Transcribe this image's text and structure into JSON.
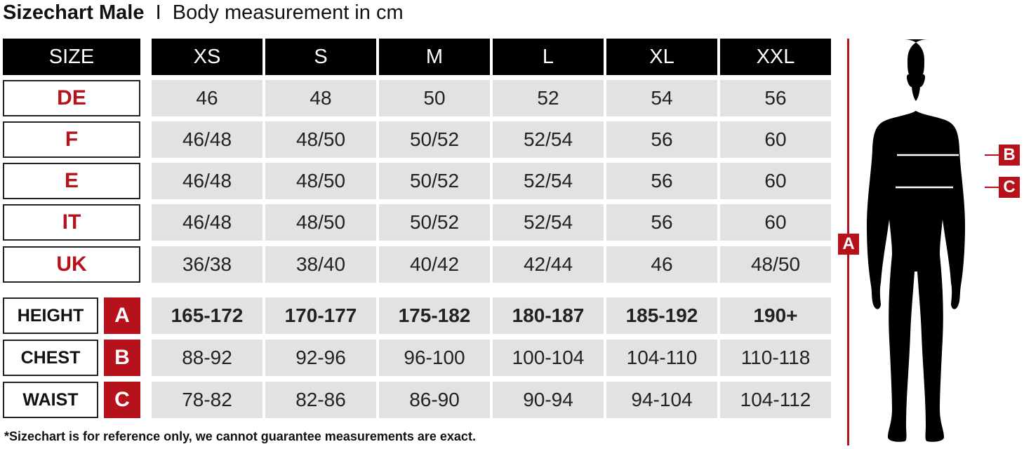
{
  "title": {
    "bold": "Sizechart Male",
    "separator": "I",
    "subtitle": "Body measurement in cm"
  },
  "header": {
    "label": "SIZE",
    "sizes": [
      "XS",
      "S",
      "M",
      "L",
      "XL",
      "XXL"
    ]
  },
  "regions": [
    {
      "label": "DE",
      "values": [
        "46",
        "48",
        "50",
        "52",
        "54",
        "56"
      ]
    },
    {
      "label": "F",
      "values": [
        "46/48",
        "48/50",
        "50/52",
        "52/54",
        "56",
        "60"
      ]
    },
    {
      "label": "E",
      "values": [
        "46/48",
        "48/50",
        "50/52",
        "52/54",
        "56",
        "60"
      ]
    },
    {
      "label": "IT",
      "values": [
        "46/48",
        "48/50",
        "50/52",
        "52/54",
        "56",
        "60"
      ]
    },
    {
      "label": "UK",
      "values": [
        "36/38",
        "38/40",
        "40/42",
        "42/44",
        "46",
        "48/50"
      ]
    }
  ],
  "measurements": [
    {
      "label": "HEIGHT",
      "letter": "A",
      "values": [
        "165-172",
        "170-177",
        "175-182",
        "180-187",
        "185-192",
        "190+"
      ]
    },
    {
      "label": "CHEST",
      "letter": "B",
      "values": [
        "88-92",
        "92-96",
        "96-100",
        "100-104",
        "104-110",
        "110-118"
      ]
    },
    {
      "label": "WAIST",
      "letter": "C",
      "values": [
        "78-82",
        "82-86",
        "86-90",
        "90-94",
        "94-104",
        "104-112"
      ]
    }
  ],
  "figure": {
    "marker_a": "A",
    "marker_b": "B",
    "marker_c": "C"
  },
  "footnote": "*Sizechart is for reference only, we cannot guarantee measurements are exact.",
  "colors": {
    "accent": "#b5121b",
    "header": "#000000",
    "cell": "#e2e2e2"
  }
}
